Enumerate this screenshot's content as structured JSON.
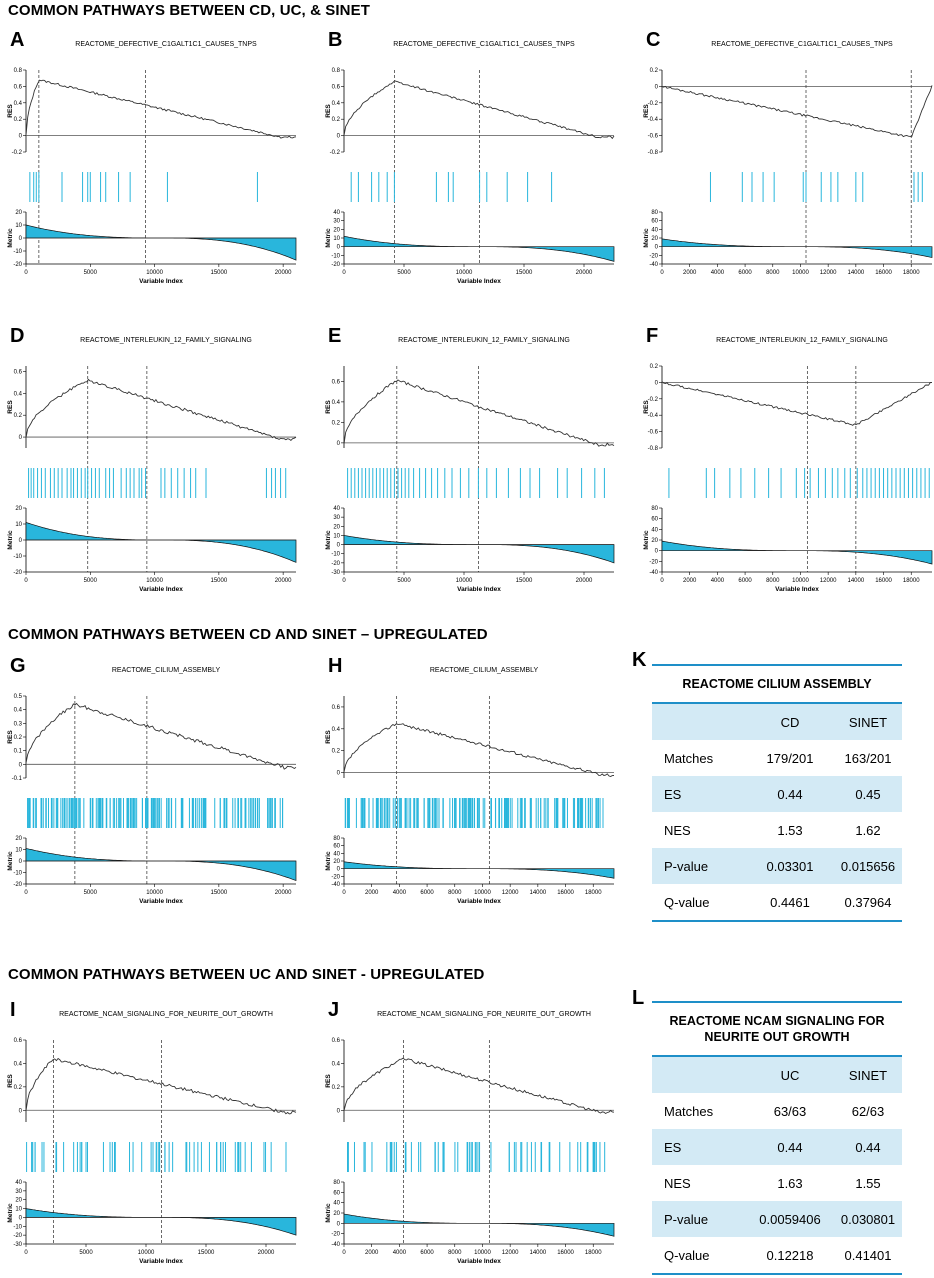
{
  "sections": {
    "s1": "COMMON PATHWAYS BETWEEN CD, UC, & SINET",
    "s2": "COMMON PATHWAYS BETWEEN CD AND SINET – UPREGULATED",
    "s3": "COMMON PATHWAYS BETWEEN UC AND SINET - UPREGULATED"
  },
  "colors": {
    "accent": "#29b6dc",
    "table_accent": "#1e8fc8",
    "table_shade": "#d3eaf5"
  },
  "chart_data": [
    {
      "label": "A",
      "type": "line",
      "title": "REACTOME_DEFECTIVE_C1GALT1C1_CAUSES_TNPS",
      "ylabel": "RES",
      "xlabel": "Variable Index",
      "res_ylim": [
        -0.2,
        0.8
      ],
      "res_ticks": [
        -0.2,
        0,
        0.2,
        0.4,
        0.6,
        0.8
      ],
      "metric_ylim": [
        -20,
        20
      ],
      "metric_ticks": [
        -20,
        -10,
        0,
        10,
        20
      ],
      "xlim": [
        0,
        21000
      ],
      "xticks": [
        0,
        5000,
        10000,
        15000,
        20000
      ],
      "hits": [
        300,
        600,
        800,
        1000,
        2800,
        4400,
        4800,
        5000,
        5800,
        6200,
        7200,
        8100,
        11000,
        18000
      ],
      "dashed": [
        1000,
        9300
      ],
      "peak": 0.68,
      "peak_at": 1000,
      "metric_start": 10,
      "metric_end": -17
    },
    {
      "label": "B",
      "type": "line",
      "title": "REACTOME_DEFECTIVE_C1GALT1C1_CAUSES_TNPS",
      "ylabel": "RES",
      "xlabel": "Variable Index",
      "res_ylim": [
        -0.2,
        0.8
      ],
      "res_ticks": [
        -0.2,
        0,
        0.2,
        0.4,
        0.6,
        0.8
      ],
      "metric_ylim": [
        -20,
        40
      ],
      "metric_ticks": [
        -20,
        -10,
        0,
        10,
        20,
        30,
        40
      ],
      "xlim": [
        0,
        22500
      ],
      "xticks": [
        0,
        5000,
        10000,
        15000,
        20000
      ],
      "hits": [
        600,
        1200,
        2300,
        2900,
        3600,
        4200,
        7700,
        8700,
        9100,
        11300,
        11900,
        13600,
        15300,
        17300
      ],
      "dashed": [
        4200,
        11300
      ],
      "peak": 0.66,
      "peak_at": 4200,
      "metric_start": 12,
      "metric_end": -17
    },
    {
      "label": "C",
      "type": "line",
      "title": "REACTOME_DEFECTIVE_C1GALT1C1_CAUSES_TNPS",
      "ylabel": "RES",
      "xlabel": "",
      "res_ylim": [
        -0.8,
        0.2
      ],
      "res_ticks": [
        -0.8,
        -0.6,
        -0.4,
        -0.2,
        0,
        0.2
      ],
      "metric_ylim": [
        -40,
        80
      ],
      "metric_ticks": [
        -40,
        -20,
        0,
        20,
        40,
        60,
        80
      ],
      "xlim": [
        0,
        19500
      ],
      "xticks": [
        0,
        2000,
        4000,
        6000,
        8000,
        10000,
        12000,
        14000,
        16000,
        18000
      ],
      "hits": [
        3500,
        5800,
        6500,
        7300,
        8100,
        10200,
        10400,
        11500,
        12200,
        12700,
        14000,
        14500,
        18200,
        18500,
        18800
      ],
      "dashed": [
        10400,
        18000
      ],
      "peak": -0.62,
      "peak_at": 18000,
      "metric_start": 18,
      "metric_end": -25
    },
    {
      "label": "D",
      "type": "line",
      "title": "REACTOME_INTERLEUKIN_12_FAMILY_SIGNALING",
      "ylabel": "RES",
      "xlabel": "Variable Index",
      "res_ylim": [
        -0.1,
        0.65
      ],
      "res_ticks": [
        0,
        0.2,
        0.4,
        0.6
      ],
      "metric_ylim": [
        -20,
        20
      ],
      "metric_ticks": [
        -20,
        -10,
        0,
        10,
        20
      ],
      "xlim": [
        0,
        21000
      ],
      "xticks": [
        0,
        5000,
        10000,
        15000,
        20000
      ],
      "hits": [
        200,
        400,
        600,
        900,
        1200,
        1500,
        1900,
        2200,
        2500,
        2800,
        3200,
        3500,
        3700,
        4000,
        4300,
        4600,
        4800,
        5100,
        5400,
        5700,
        6200,
        6500,
        6800,
        7400,
        7800,
        8100,
        8400,
        8800,
        9000,
        9300,
        10500,
        10800,
        11300,
        11800,
        12300,
        12800,
        13200,
        14000,
        18700,
        19100,
        19400,
        19800,
        20200
      ],
      "dashed": [
        4800,
        9400
      ],
      "peak": 0.52,
      "peak_at": 4800,
      "metric_start": 11,
      "metric_end": -14
    },
    {
      "label": "E",
      "type": "line",
      "title": "REACTOME_INTERLEUKIN_12_FAMILY_SIGNALING",
      "ylabel": "RES",
      "xlabel": "Variable Index",
      "res_ylim": [
        -0.05,
        0.75
      ],
      "res_ticks": [
        0,
        0.2,
        0.4,
        0.6
      ],
      "metric_ylim": [
        -30,
        40
      ],
      "metric_ticks": [
        -30,
        -20,
        -10,
        0,
        10,
        20,
        30,
        40
      ],
      "xlim": [
        0,
        22500
      ],
      "xticks": [
        0,
        5000,
        10000,
        15000,
        20000
      ],
      "hits": [
        300,
        600,
        900,
        1200,
        1500,
        1800,
        2100,
        2400,
        2700,
        3000,
        3300,
        3600,
        3900,
        4200,
        4500,
        4800,
        5100,
        5400,
        5800,
        6300,
        6800,
        7300,
        7800,
        8400,
        9000,
        9700,
        10400,
        11200,
        11900,
        12700,
        13700,
        14700,
        15500,
        16300,
        17800,
        18600,
        19800,
        20900,
        21700
      ],
      "dashed": [
        4400,
        11200
      ],
      "peak": 0.61,
      "peak_at": 4400,
      "metric_start": 10,
      "metric_end": -20
    },
    {
      "label": "F",
      "type": "line",
      "title": "REACTOME_INTERLEUKIN_12_FAMILY_SIGNALING",
      "ylabel": "RES",
      "xlabel": "Variable Index",
      "res_ylim": [
        -0.8,
        0.2
      ],
      "res_ticks": [
        -0.8,
        -0.6,
        -0.4,
        -0.2,
        0,
        0.2
      ],
      "metric_ylim": [
        -40,
        80
      ],
      "metric_ticks": [
        -40,
        -20,
        0,
        20,
        40,
        60,
        80
      ],
      "xlim": [
        0,
        19500
      ],
      "xticks": [
        0,
        2000,
        4000,
        6000,
        8000,
        10000,
        12000,
        14000,
        16000,
        18000
      ],
      "hits": [
        500,
        3200,
        3800,
        4900,
        5700,
        6700,
        7700,
        8600,
        9700,
        10300,
        10700,
        11300,
        11800,
        12300,
        12700,
        13200,
        13600,
        14100,
        14500,
        14800,
        15100,
        15400,
        15700,
        16000,
        16300,
        16600,
        16900,
        17200,
        17500,
        17800,
        18100,
        18400,
        18700,
        19000,
        19300
      ],
      "dashed": [
        10500,
        14000
      ],
      "peak": -0.52,
      "peak_at": 14000,
      "metric_start": 18,
      "metric_end": -25
    },
    {
      "label": "G",
      "type": "line",
      "title": "REACTOME_CILIUM_ASSEMBLY",
      "ylabel": "RES",
      "xlabel": "Variable Index",
      "res_ylim": [
        -0.1,
        0.5
      ],
      "res_ticks": [
        -0.1,
        0,
        0.1,
        0.2,
        0.3,
        0.4,
        0.5
      ],
      "metric_ylim": [
        -20,
        20
      ],
      "metric_ticks": [
        -20,
        -10,
        0,
        10,
        20
      ],
      "xlim": [
        0,
        21000
      ],
      "xticks": [
        0,
        5000,
        10000,
        15000,
        20000
      ],
      "hits": "dense",
      "dashed": [
        3800,
        9400
      ],
      "peak": 0.44,
      "peak_at": 3800,
      "metric_start": 11,
      "metric_end": -17
    },
    {
      "label": "H",
      "type": "line",
      "title": "REACTOME_CILIUM_ASSEMBLY",
      "ylabel": "RES",
      "xlabel": "Variable Index",
      "res_ylim": [
        -0.05,
        0.7
      ],
      "res_ticks": [
        0,
        0.2,
        0.4,
        0.6
      ],
      "metric_ylim": [
        -40,
        80
      ],
      "metric_ticks": [
        -40,
        -20,
        0,
        20,
        40,
        60,
        80
      ],
      "xlim": [
        0,
        19500
      ],
      "xticks": [
        0,
        2000,
        4000,
        6000,
        8000,
        10000,
        12000,
        14000,
        16000,
        18000
      ],
      "hits": "dense",
      "dashed": [
        3800,
        10500
      ],
      "peak": 0.45,
      "peak_at": 3800,
      "metric_start": 18,
      "metric_end": -25
    },
    {
      "label": "I",
      "type": "line",
      "title": "REACTOME_NCAM_SIGNALING_FOR_NEURITE_OUT_GROWTH",
      "ylabel": "RES",
      "xlabel": "Variable Index",
      "res_ylim": [
        -0.1,
        0.6
      ],
      "res_ticks": [
        0,
        0.2,
        0.4,
        0.6
      ],
      "metric_ylim": [
        -30,
        40
      ],
      "metric_ticks": [
        -30,
        -20,
        -10,
        0,
        10,
        20,
        30,
        40
      ],
      "xlim": [
        0,
        22500
      ],
      "xticks": [
        0,
        5000,
        10000,
        15000,
        20000
      ],
      "hits": "medium",
      "dashed": [
        2300,
        11300
      ],
      "peak": 0.44,
      "peak_at": 2300,
      "metric_start": 10,
      "metric_end": -20
    },
    {
      "label": "J",
      "type": "line",
      "title": "REACTOME_NCAM_SIGNALING_FOR_NEURITE_OUT_GROWTH",
      "ylabel": "RES",
      "xlabel": "Variable Index",
      "res_ylim": [
        -0.1,
        0.6
      ],
      "res_ticks": [
        0,
        0.2,
        0.4,
        0.6
      ],
      "metric_ylim": [
        -40,
        80
      ],
      "metric_ticks": [
        -40,
        -20,
        0,
        20,
        40,
        60,
        80
      ],
      "xlim": [
        0,
        19500
      ],
      "xticks": [
        0,
        2000,
        4000,
        6000,
        8000,
        10000,
        12000,
        14000,
        16000,
        18000
      ],
      "hits": "medium",
      "dashed": [
        4300,
        10500
      ],
      "peak": 0.44,
      "peak_at": 4300,
      "metric_start": 18,
      "metric_end": -25
    }
  ],
  "tables": {
    "K": {
      "label": "K",
      "title": "REACTOME CILIUM ASSEMBLY",
      "headers": [
        "",
        "CD",
        "SINET"
      ],
      "rows": [
        [
          "Matches",
          "179/201",
          "163/201"
        ],
        [
          "ES",
          "0.44",
          "0.45"
        ],
        [
          "NES",
          "1.53",
          "1.62"
        ],
        [
          "P-value",
          "0.03301",
          "0.015656"
        ],
        [
          "Q-value",
          "0.4461",
          "0.37964"
        ]
      ]
    },
    "L": {
      "label": "L",
      "title": "REACTOME NCAM SIGNALING FOR NEURITE OUT GROWTH",
      "headers": [
        "",
        "UC",
        "SINET"
      ],
      "rows": [
        [
          "Matches",
          "63/63",
          "62/63"
        ],
        [
          "ES",
          "0.44",
          "0.44"
        ],
        [
          "NES",
          "1.63",
          "1.55"
        ],
        [
          "P-value",
          "0.0059406",
          "0.030801"
        ],
        [
          "Q-value",
          "0.12218",
          "0.41401"
        ]
      ]
    }
  }
}
